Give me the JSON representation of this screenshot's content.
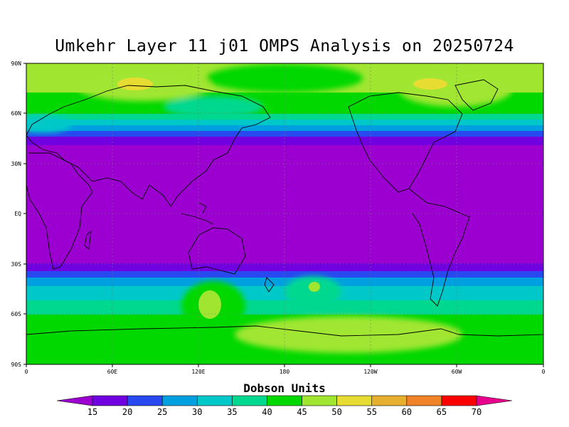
{
  "title": "Umkehr Layer 11 j01 OMPS Analysis on 20250724",
  "lat_labels": [
    "90N",
    "60N",
    "30N",
    "EQ",
    "30S",
    "60S",
    "90S"
  ],
  "lon_labels": [
    "0",
    "60E",
    "120E",
    "180",
    "120W",
    "60W",
    "0"
  ],
  "colorbar": {
    "title": "Dobson Units",
    "labels": [
      "15",
      "20",
      "25",
      "30",
      "35",
      "40",
      "45",
      "50",
      "55",
      "60",
      "65",
      "70"
    ],
    "colors": [
      "#9c00d0",
      "#7000e0",
      "#2848f0",
      "#00a0e0",
      "#00c8c8",
      "#00d890",
      "#00d800",
      "#a0e630",
      "#e6dc32",
      "#e6af2d",
      "#f08228",
      "#fa0000",
      "#e6008c"
    ]
  },
  "chart_data": {
    "type": "heatmap",
    "title": "Umkehr Layer 11 j01 OMPS Analysis on 20250724",
    "units": "Dobson Units",
    "date": "20250724",
    "contour_levels": [
      15,
      20,
      25,
      30,
      35,
      40,
      45,
      50,
      55,
      60,
      65,
      70
    ],
    "zonal_pattern": [
      {
        "lat_range": [
          "35S",
          "35N"
        ],
        "value_range": "<15"
      },
      {
        "lat_range": [
          "35N",
          "55N"
        ],
        "value_range": "15-40 (increasing poleward)"
      },
      {
        "lat_range": [
          "55N",
          "90N"
        ],
        "value_range": "40-55"
      },
      {
        "lat_range": [
          "30S",
          "50S"
        ],
        "value_range": "15-35"
      },
      {
        "lat_range": [
          "50S",
          "90S"
        ],
        "value_range": "40-50"
      }
    ],
    "maxima": [
      {
        "region": "Siberia ~85E 80N",
        "value_range": "50-55"
      },
      {
        "region": "Greenland/Arctic Canada ~75W 80N",
        "value_range": "50-55"
      },
      {
        "region": "Southern Ocean ~175W 45S",
        "value_range": "45-50"
      },
      {
        "region": "Southern Ocean ~115E 55S",
        "value_range": "45-50"
      }
    ],
    "grid": true
  }
}
